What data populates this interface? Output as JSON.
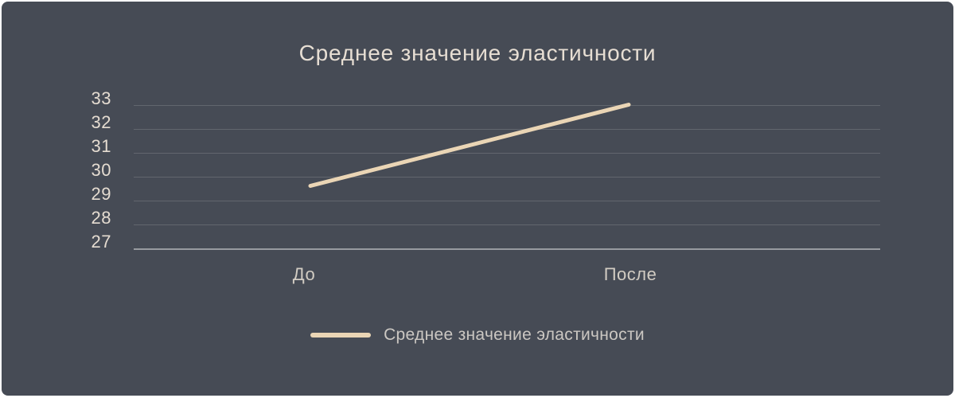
{
  "chart_data": {
    "type": "line",
    "title": "Среднее значение эластичности",
    "categories": [
      "До",
      "После"
    ],
    "series": [
      {
        "name": "Среднее значение эластичности",
        "values": [
          29.6,
          33
        ]
      }
    ],
    "yticks": [
      33,
      32,
      31,
      30,
      29,
      28,
      27
    ],
    "ylim": [
      27,
      33
    ],
    "xlabel": "",
    "ylabel": "",
    "grid": true,
    "legend_position": "bottom",
    "colors": {
      "page_bg": "#ffffff",
      "panel_bg": "#464B55",
      "gridline": "#62666E",
      "axis_line": "#989BA0",
      "title_text": "#E7DED3",
      "tick_text": "#E5DCD1",
      "xlabel_text": "#D2CCC3",
      "line": "#EAD5B5",
      "legend_text": "#CBC7C2"
    }
  }
}
